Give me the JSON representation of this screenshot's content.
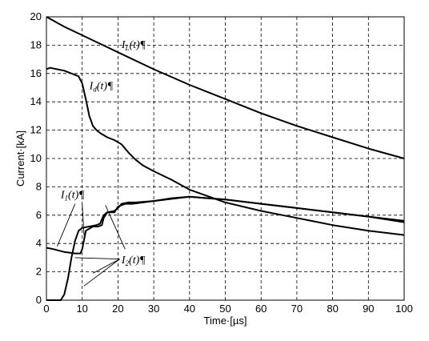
{
  "chart_data": {
    "type": "line",
    "xlabel": "Time·[µs]",
    "ylabel": "Current·[kA]",
    "xlim": [
      0,
      100
    ],
    "ylim": [
      0,
      20
    ],
    "xticks": [
      "0",
      "10",
      "20",
      "30",
      "40",
      "50",
      "60",
      "70",
      "80",
      "90",
      "100"
    ],
    "yticks": [
      "0",
      "2",
      "4",
      "6",
      "8",
      "10",
      "12",
      "14",
      "16",
      "18",
      "20"
    ],
    "grid": true,
    "series": [
      {
        "name": "IL(t)",
        "label_base": "I",
        "label_sub": "L",
        "label_tail": "(t)¶",
        "x": [
          0,
          5,
          10,
          15,
          20,
          30,
          40,
          50,
          60,
          70,
          80,
          90,
          100
        ],
        "y": [
          20,
          19.3,
          18.7,
          18.1,
          17.5,
          16.3,
          15.2,
          14.2,
          13.2,
          12.3,
          11.5,
          10.7,
          10.0
        ]
      },
      {
        "name": "Id(t)",
        "label_base": "I",
        "label_sub": "d",
        "label_tail": "(t)¶",
        "x": [
          0,
          1,
          3,
          5,
          7,
          9,
          10,
          11,
          12,
          13,
          14,
          15,
          17,
          19,
          21,
          23,
          25,
          27,
          30,
          35,
          40,
          50,
          60,
          70,
          80,
          90,
          100
        ],
        "y": [
          16.3,
          16.4,
          16.3,
          16.2,
          16.0,
          15.8,
          15.3,
          14.2,
          13.0,
          12.3,
          12.0,
          11.8,
          11.5,
          11.3,
          11.0,
          10.4,
          9.9,
          9.5,
          9.1,
          8.5,
          7.8,
          6.9,
          6.3,
          5.8,
          5.3,
          4.9,
          4.6
        ]
      },
      {
        "name": "I1(t)",
        "label_base": "I",
        "label_sub": "1",
        "label_tail": "(t)¶",
        "x": [
          0,
          2,
          5,
          8,
          9.5,
          10,
          11,
          13,
          14.5,
          15.5,
          16,
          17,
          19,
          20,
          21,
          23,
          25,
          30,
          40,
          50,
          60,
          70,
          80,
          90,
          100
        ],
        "y": [
          3.7,
          3.6,
          3.4,
          3.3,
          3.3,
          3.6,
          4.9,
          5.2,
          5.2,
          5.3,
          5.8,
          6.2,
          6.3,
          6.5,
          6.8,
          6.9,
          6.9,
          7.0,
          7.3,
          7.1,
          6.8,
          6.5,
          6.2,
          5.9,
          5.5
        ]
      },
      {
        "name": "I2(t)",
        "label_base": "I",
        "label_sub": "2",
        "label_tail": "(t)¶",
        "x": [
          0,
          2,
          4,
          5,
          6,
          7,
          8,
          9,
          10,
          12,
          14,
          15,
          16,
          17,
          18,
          19,
          20,
          22,
          24,
          27,
          30,
          35,
          40,
          45,
          50,
          60,
          70,
          80,
          90,
          100
        ],
        "y": [
          0,
          0,
          0,
          0.4,
          1.5,
          3.0,
          4.2,
          4.9,
          5.1,
          5.2,
          5.3,
          5.4,
          6.0,
          6.2,
          6.2,
          6.2,
          6.6,
          6.8,
          6.8,
          6.9,
          7.0,
          7.2,
          7.3,
          7.2,
          7.1,
          6.8,
          6.5,
          6.2,
          5.9,
          5.6
        ]
      }
    ]
  }
}
